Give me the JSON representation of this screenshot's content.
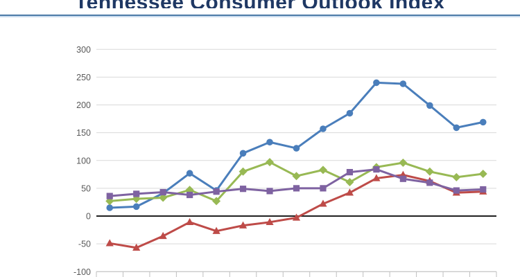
{
  "title": "Tennessee Consumer Outlook Index",
  "chart_data": {
    "type": "line",
    "title": "Tennessee Consumer Outlook Index",
    "n_points": 15,
    "categories": [],
    "x_tick_labels_visible": false,
    "ylim": [
      -100,
      300
    ],
    "yticks": [
      300,
      250,
      200,
      150,
      100,
      50,
      0,
      -50,
      -100
    ],
    "grid": true,
    "legend": false,
    "series": [
      {
        "name": "blue-circle-series",
        "marker": "circle",
        "color": "#4A7EBB",
        "values": [
          15,
          17,
          41,
          77,
          46,
          113,
          133,
          122,
          157,
          185,
          240,
          238,
          199,
          159,
          169
        ]
      },
      {
        "name": "red-triangle-series",
        "marker": "triangle",
        "color": "#BE4B48",
        "values": [
          -49,
          -57,
          -36,
          -11,
          -27,
          -17,
          -11,
          -3,
          22,
          42,
          68,
          74,
          63,
          42,
          44
        ]
      },
      {
        "name": "green-diamond-series",
        "marker": "diamond",
        "color": "#98B954",
        "values": [
          27,
          31,
          33,
          47,
          27,
          80,
          97,
          72,
          83,
          61,
          88,
          96,
          80,
          70,
          76
        ]
      },
      {
        "name": "purple-square-series",
        "marker": "square",
        "color": "#7E62A1",
        "values": [
          36,
          40,
          43,
          38,
          44,
          49,
          45,
          50,
          50,
          79,
          84,
          67,
          60,
          46,
          48
        ]
      }
    ]
  },
  "colors": {
    "title": "#1F3864",
    "rule_top": "#4d7ba7",
    "rule_bottom": "#c9dcef",
    "gridline": "#D9D9D9",
    "zero_line": "#000000",
    "axis_tick": "#BFBFBF",
    "axis_label": "#595959"
  }
}
